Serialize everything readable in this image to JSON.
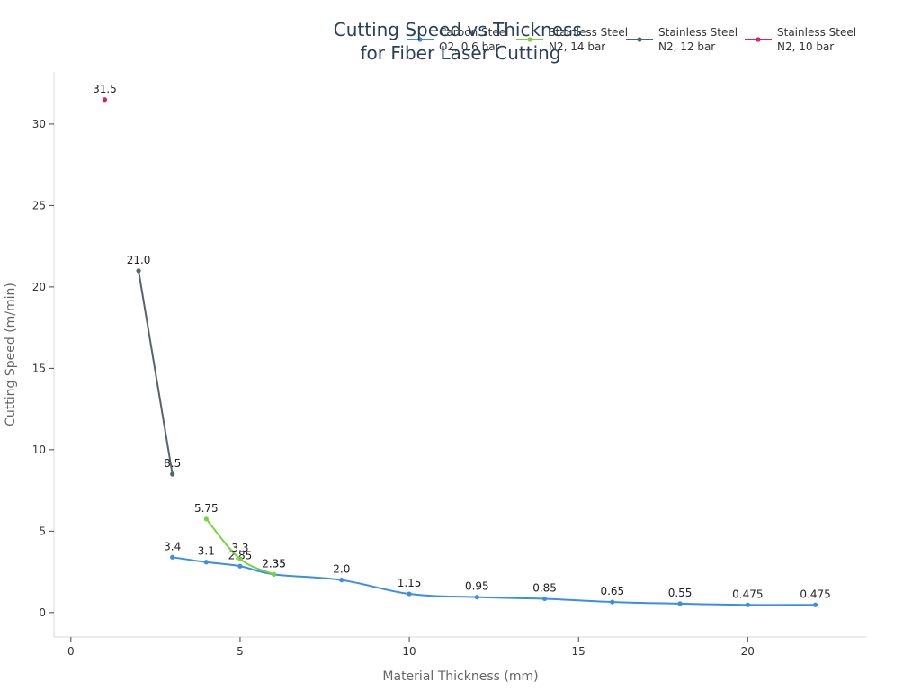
{
  "chart_data": {
    "type": "line",
    "title": "Cutting Speed vs Thickness for Fiber Laser Cutting",
    "title_lines": [
      "Cutting Speed vs Thickness",
      "for Fiber Laser Cutting"
    ],
    "xlabel": "Material Thickness (mm)",
    "ylabel": "Cutting Speed (m/min)",
    "xlim": [
      -0.5,
      23.5
    ],
    "ylim": [
      -1.5,
      33.2
    ],
    "xticks": [
      0,
      5,
      10,
      15,
      20
    ],
    "yticks": [
      0,
      5,
      10,
      15,
      20,
      25,
      30
    ],
    "grid": false,
    "legend_position": "top-right",
    "series": [
      {
        "name": "Carbon Steel O2, 0.6 bar",
        "legend_lines": [
          "Carbon Steel",
          "O2, 0.6 bar"
        ],
        "color": "#3a8ee6",
        "x": [
          3,
          4,
          5,
          6,
          8,
          10,
          12,
          14,
          16,
          18,
          20,
          22
        ],
        "y": [
          3.4,
          3.1,
          2.85,
          2.35,
          2.0,
          1.15,
          0.95,
          0.85,
          0.65,
          0.55,
          0.475,
          0.475
        ],
        "labels": [
          "3.4",
          "3.1",
          "2.85",
          "2.35",
          "2.0",
          "1.15",
          "0.95",
          "0.85",
          "0.65",
          "0.55",
          "0.475",
          "0.475"
        ]
      },
      {
        "name": "Stainless Steel N2, 14 bar",
        "legend_lines": [
          "Stainless Steel",
          "N2, 14 bar"
        ],
        "color": "#78d23c",
        "x": [
          4,
          5,
          6
        ],
        "y": [
          5.75,
          3.3,
          2.35
        ],
        "labels": [
          "5.75",
          "3.3",
          "2.35"
        ]
      },
      {
        "name": "Stainless Steel N2, 12 bar",
        "legend_lines": [
          "Stainless Steel",
          "N2, 12 bar"
        ],
        "color": "#4f6672",
        "x": [
          2,
          3
        ],
        "y": [
          21.0,
          8.5
        ],
        "labels": [
          "21.0",
          "8.5"
        ]
      },
      {
        "name": "Stainless Steel N2, 10 bar",
        "legend_lines": [
          "Stainless Steel",
          "N2, 10 bar"
        ],
        "color": "#d6245e",
        "x": [
          1
        ],
        "y": [
          31.5
        ],
        "labels": [
          "31.5"
        ]
      }
    ]
  }
}
